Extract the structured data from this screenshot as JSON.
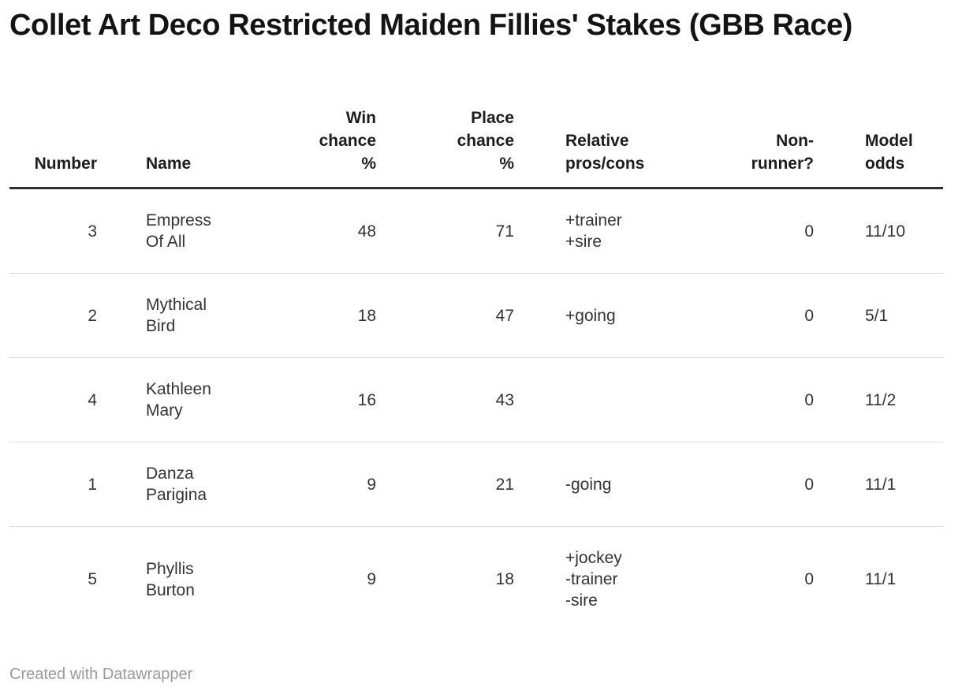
{
  "title": "Collet Art Deco Restricted Maiden Fillies' Stakes (GBB Race)",
  "footer": {
    "text": "Created with Datawrapper"
  },
  "colors": {
    "title_text": "#141414",
    "body_text": "#333333",
    "header_border": "#2f2f2f",
    "row_border": "#dddddd",
    "footer_text": "#9a9a9a",
    "background": "#ffffff"
  },
  "table": {
    "header": [
      "Number",
      "Name",
      "Win\nchance\n%",
      "Place\nchance\n%",
      "Relative\npros/cons",
      "Non-\nrunner?",
      "Model\nodds"
    ],
    "rows": [
      [
        "3",
        "Empress\nOf All",
        "48",
        "71",
        "+trainer\n+sire",
        "0",
        "11/10"
      ],
      [
        "2",
        "Mythical\nBird",
        "18",
        "47",
        "+going",
        "0",
        "5/1"
      ],
      [
        "4",
        "Kathleen\nMary",
        "16",
        "43",
        "",
        "0",
        "11/2"
      ],
      [
        "1",
        "Danza\nParigina",
        "9",
        "21",
        "-going",
        "0",
        "11/1"
      ],
      [
        "5",
        "Phyllis\nBurton",
        "9",
        "18",
        "+jockey\n-trainer\n-sire",
        "0",
        "11/1"
      ]
    ]
  },
  "chart_data": {
    "type": "table",
    "title": "Collet Art Deco Restricted Maiden Fillies' Stakes (GBB Race)",
    "columns": [
      "Number",
      "Name",
      "Win chance %",
      "Place chance %",
      "Relative pros/cons",
      "Non-runner?",
      "Model odds"
    ],
    "column_alignments": [
      "right",
      "left",
      "right",
      "right",
      "left",
      "right",
      "left"
    ],
    "rows": [
      [
        3,
        "Empress Of All",
        48,
        71,
        "+trainer +sire",
        0,
        "11/10"
      ],
      [
        2,
        "Mythical Bird",
        18,
        47,
        "+going",
        0,
        "5/1"
      ],
      [
        4,
        "Kathleen Mary",
        16,
        43,
        "",
        0,
        "11/2"
      ],
      [
        1,
        "Danza Parigina",
        9,
        21,
        "-going",
        0,
        "11/1"
      ],
      [
        5,
        "Phyllis Burton",
        9,
        18,
        "+jockey -trainer -sire",
        0,
        "11/1"
      ]
    ],
    "attribution": "Created with Datawrapper"
  }
}
